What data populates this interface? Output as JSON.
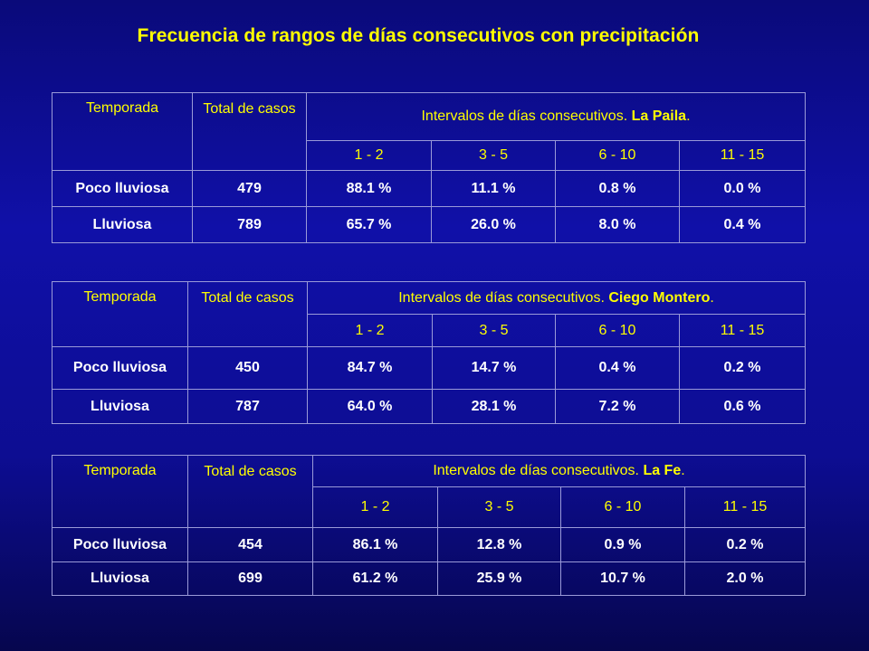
{
  "title": "Frecuencia de rangos de días consecutivos con precipitación",
  "colors": {
    "background": "#1010a8",
    "title": "#ffff00",
    "header_text": "#ffff00",
    "data_text": "#ffffff",
    "border": "#9a9ad8"
  },
  "tables": [
    {
      "headers": {
        "season": "Temporada",
        "total": "Total de casos",
        "intervals_prefix": "Intervalos de días consecutivos. ",
        "location": "La Paila",
        "suffix": ".",
        "ranges": [
          "1 - 2",
          "3 - 5",
          "6 - 10",
          "11 - 15"
        ]
      },
      "rows": [
        {
          "season": "Poco lluviosa",
          "total": "479",
          "values": [
            "88.1 %",
            "11.1 %",
            "0.8 %",
            "0.0 %"
          ]
        },
        {
          "season": "Lluviosa",
          "total": "789",
          "values": [
            "65.7 %",
            "26.0 %",
            "8.0 %",
            "0.4 %"
          ]
        }
      ]
    },
    {
      "headers": {
        "season": "Temporada",
        "total": "Total de casos",
        "intervals_prefix": "Intervalos de días consecutivos. ",
        "location": "Ciego Montero",
        "suffix": ".",
        "ranges": [
          "1 - 2",
          "3 - 5",
          "6 - 10",
          "11 - 15"
        ]
      },
      "rows": [
        {
          "season": "Poco lluviosa",
          "total": "450",
          "values": [
            "84.7 %",
            "14.7 %",
            "0.4 %",
            "0.2 %"
          ]
        },
        {
          "season": "Lluviosa",
          "total": "787",
          "values": [
            "64.0 %",
            "28.1 %",
            "7.2 %",
            "0.6 %"
          ]
        }
      ]
    },
    {
      "headers": {
        "season": "Temporada",
        "total": "Total de casos",
        "intervals_prefix": "Intervalos de días consecutivos. ",
        "location": "La Fe",
        "suffix": ".",
        "ranges": [
          "1 - 2",
          "3 - 5",
          "6 - 10",
          "11 - 15"
        ]
      },
      "rows": [
        {
          "season": "Poco lluviosa",
          "total": "454",
          "values": [
            "86.1 %",
            "12.8 %",
            "0.9 %",
            "0.2 %"
          ]
        },
        {
          "season": "Lluviosa",
          "total": "699",
          "values": [
            "61.2 %",
            "25.9 %",
            "10.7 %",
            "2.0 %"
          ]
        }
      ]
    }
  ]
}
